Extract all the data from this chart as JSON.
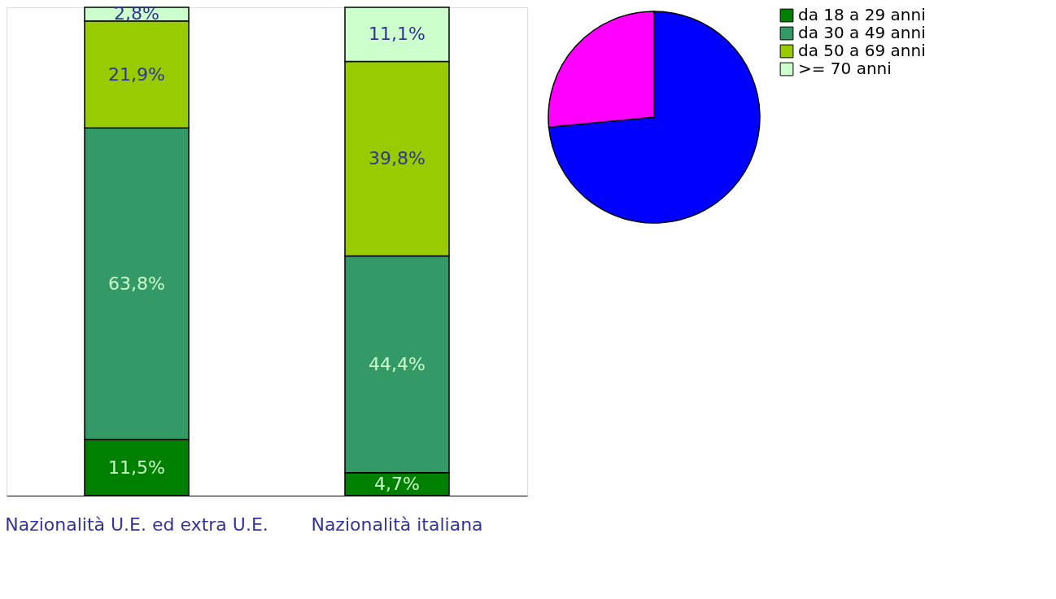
{
  "chart_data": [
    {
      "type": "bar",
      "stacked": true,
      "categories": [
        "Nazionalità U.E. ed extra U.E.",
        "Nazionalità italiana"
      ],
      "series": [
        {
          "name": "da 18 a 29 anni",
          "color": "#008000",
          "values": [
            11.5,
            4.7
          ],
          "value_labels": [
            "11,5%",
            "4,7%"
          ]
        },
        {
          "name": "da 30 a 49 anni",
          "color": "#339966",
          "values": [
            63.8,
            44.4
          ],
          "value_labels": [
            "63,8%",
            "44,4%"
          ]
        },
        {
          "name": "da 50 a 69 anni",
          "color": "#99cc00",
          "values": [
            21.9,
            39.8
          ],
          "value_labels": [
            "21,9%",
            "39,8%"
          ]
        },
        {
          "name": ">= 70 anni",
          "color": "#ccffcc",
          "values": [
            2.8,
            11.1
          ],
          "value_labels": [
            "2,8%",
            "11,1%"
          ]
        }
      ],
      "legend": "right",
      "tick_labels": "x"
    },
    {
      "type": "pie",
      "categories": [
        null,
        null
      ],
      "values": [
        73.5,
        26.5
      ],
      "colors": [
        "#0000ff",
        "#ff00ff"
      ]
    }
  ]
}
